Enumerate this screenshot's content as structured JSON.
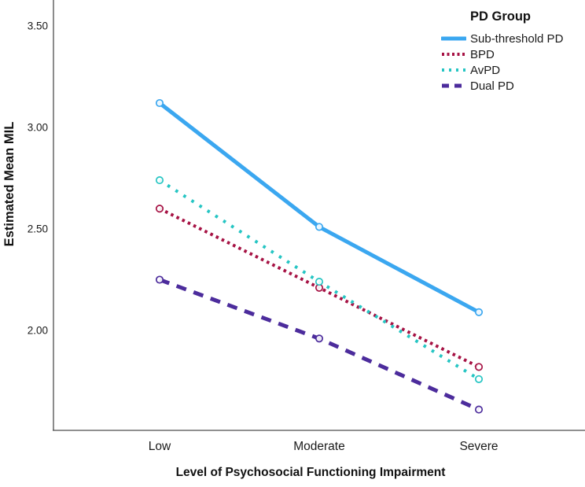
{
  "chart_data": {
    "type": "line",
    "title": "",
    "xlabel": "Level of Psychosocial Functioning Impairment",
    "ylabel": "Estimated Mean MIL",
    "categories": [
      "Low",
      "Moderate",
      "Severe"
    ],
    "series": [
      {
        "name": "Sub-threshold PD",
        "values": [
          3.12,
          2.51,
          2.09
        ],
        "color": "#3BA7F0",
        "line_style": "solid",
        "line_width": 5
      },
      {
        "name": "BPD",
        "values": [
          2.6,
          2.21,
          1.82
        ],
        "color": "#A61244",
        "line_style": "dotted",
        "line_width": 4
      },
      {
        "name": "AvPD",
        "values": [
          2.74,
          2.24,
          1.76
        ],
        "color": "#25C5C3",
        "line_style": "dotted-wide",
        "line_width": 4
      },
      {
        "name": "Dual PD",
        "values": [
          2.25,
          1.96,
          1.61
        ],
        "color": "#4C2C9C",
        "line_style": "dashed",
        "line_width": 5
      }
    ],
    "yticks": {
      "labels": [
        "3.50",
        "3.00",
        "2.50",
        "2.00"
      ],
      "values": [
        3.5,
        3.0,
        2.5,
        2.0
      ]
    },
    "ylim": [
      1.51,
      3.63
    ],
    "grid": false,
    "marker": "open-circle",
    "legend": {
      "title": "PD Group",
      "position": "top-right"
    },
    "axis_color": "#4d4d4d",
    "text_color": "#1a1a1a"
  }
}
